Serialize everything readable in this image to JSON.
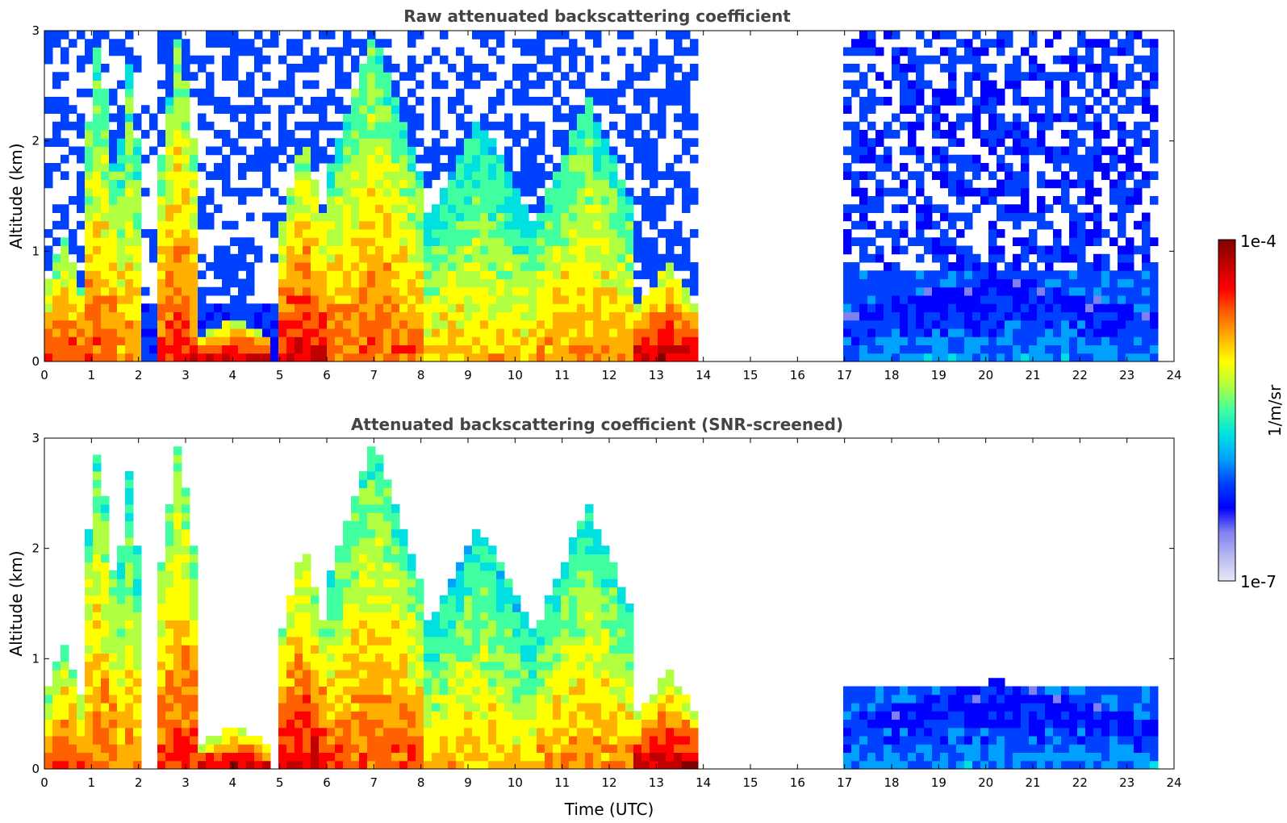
{
  "chart_data": [
    {
      "type": "heatmap",
      "title": "Raw attenuated backscattering coefficient",
      "xlabel": "",
      "ylabel": "Altitude (km)",
      "xlim": [
        0,
        24
      ],
      "ylim": [
        0,
        3
      ],
      "x_ticks": [
        "0",
        "1",
        "2",
        "3",
        "4",
        "5",
        "6",
        "7",
        "8",
        "9",
        "10",
        "11",
        "12",
        "13",
        "14",
        "15",
        "16",
        "17",
        "18",
        "19",
        "20",
        "21",
        "22",
        "23",
        "24"
      ],
      "y_ticks": [
        "0",
        "1",
        "2",
        "3"
      ],
      "data_gap_hours": [
        13.9,
        16.9
      ],
      "max_time_hours": 23.6,
      "features": [
        {
          "t_start": 0.0,
          "t_end": 0.8,
          "alt_top": 1.2,
          "level": 0.85
        },
        {
          "t_start": 0.8,
          "t_end": 1.5,
          "alt_top": 3.0,
          "level": 0.8
        },
        {
          "t_start": 1.5,
          "t_end": 2.1,
          "alt_top": 2.7,
          "level": 0.75
        },
        {
          "t_start": 2.4,
          "t_end": 3.3,
          "alt_top": 3.0,
          "level": 0.85
        },
        {
          "t_start": 3.3,
          "t_end": 4.8,
          "alt_top": 0.4,
          "level": 0.95
        },
        {
          "t_start": 5.0,
          "t_end": 6.0,
          "alt_top": 2.1,
          "level": 0.9
        },
        {
          "t_start": 6.0,
          "t_end": 8.0,
          "alt_top": 3.0,
          "level": 0.8
        },
        {
          "t_start": 8.0,
          "t_end": 10.5,
          "alt_top": 2.2,
          "level": 0.7
        },
        {
          "t_start": 10.5,
          "t_end": 12.6,
          "alt_top": 2.4,
          "level": 0.75
        },
        {
          "t_start": 12.6,
          "t_end": 13.9,
          "alt_top": 0.9,
          "level": 0.95
        },
        {
          "t_start": 16.9,
          "t_end": 23.6,
          "alt_top": 0.8,
          "level": 0.35
        }
      ]
    },
    {
      "type": "heatmap",
      "title": "Attenuated backscattering coefficient (SNR-screened)",
      "xlabel": "Time (UTC)",
      "ylabel": "Altitude (km)",
      "xlim": [
        0,
        24
      ],
      "ylim": [
        0,
        3
      ],
      "x_ticks": [
        "0",
        "1",
        "2",
        "3",
        "4",
        "5",
        "6",
        "7",
        "8",
        "9",
        "10",
        "11",
        "12",
        "13",
        "14",
        "15",
        "16",
        "17",
        "18",
        "19",
        "20",
        "21",
        "22",
        "23",
        "24"
      ],
      "y_ticks": [
        "0",
        "1",
        "2",
        "3"
      ],
      "data_gap_hours": [
        13.9,
        16.9
      ],
      "max_time_hours": 23.6
    }
  ],
  "colorbar": {
    "min_label": "1e-7",
    "max_label": "1e-4",
    "label": "1/m/sr",
    "colors": [
      "#e8e8f8",
      "#b8b8f0",
      "#8080f0",
      "#0000ff",
      "#0040ff",
      "#00a0ff",
      "#00e0e0",
      "#40ffa0",
      "#b0ff40",
      "#ffff00",
      "#ffb000",
      "#ff6000",
      "#ff0000",
      "#c00000",
      "#800000"
    ]
  }
}
